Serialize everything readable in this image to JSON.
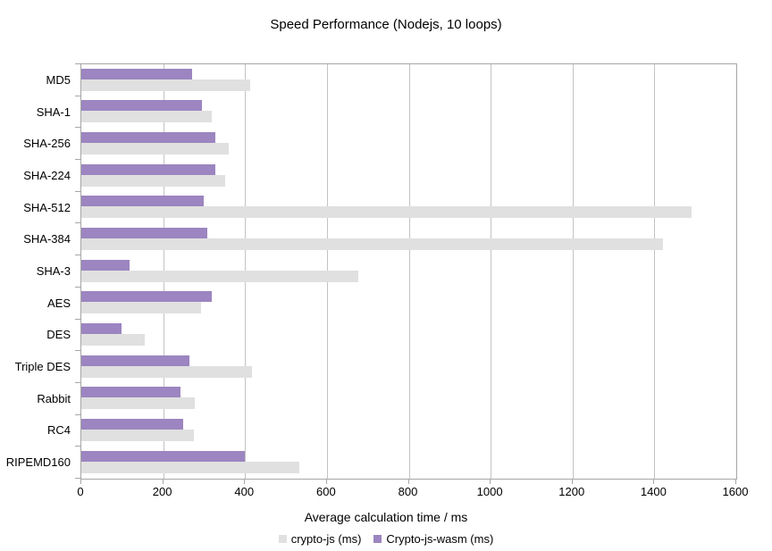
{
  "chart_data": {
    "type": "bar",
    "orientation": "horizontal",
    "title": "Speed Performance (Nodejs, 10 loops)",
    "xlabel": "Average calculation time / ms",
    "ylabel": "",
    "xlim": [
      0,
      1600
    ],
    "xticks": [
      0,
      200,
      400,
      600,
      800,
      1000,
      1200,
      1400,
      1600
    ],
    "grid": true,
    "legend_position": "bottom",
    "categories": [
      "MD5",
      "SHA-1",
      "SHA-256",
      "SHA-224",
      "SHA-512",
      "SHA-384",
      "SHA-3",
      "AES",
      "DES",
      "Triple DES",
      "Rabbit",
      "RC4",
      "RIPEMD160"
    ],
    "series": [
      {
        "name": "crypto-js (ms)",
        "color": "#e0e0e0",
        "values": [
          412,
          319,
          361,
          352,
          1490,
          1421,
          677,
          292,
          155,
          416,
          278,
          274,
          533
        ]
      },
      {
        "name": "Crypto-js-wasm (ms)",
        "color": "#9c85c0",
        "values": [
          270,
          294,
          328,
          328,
          299,
          307,
          118,
          318,
          99,
          265,
          243,
          248,
          400
        ]
      }
    ],
    "colors": {
      "grid": "#c3c3c3",
      "axis": "#a6a6a6",
      "text": "#000000",
      "background": "#ffffff"
    }
  }
}
